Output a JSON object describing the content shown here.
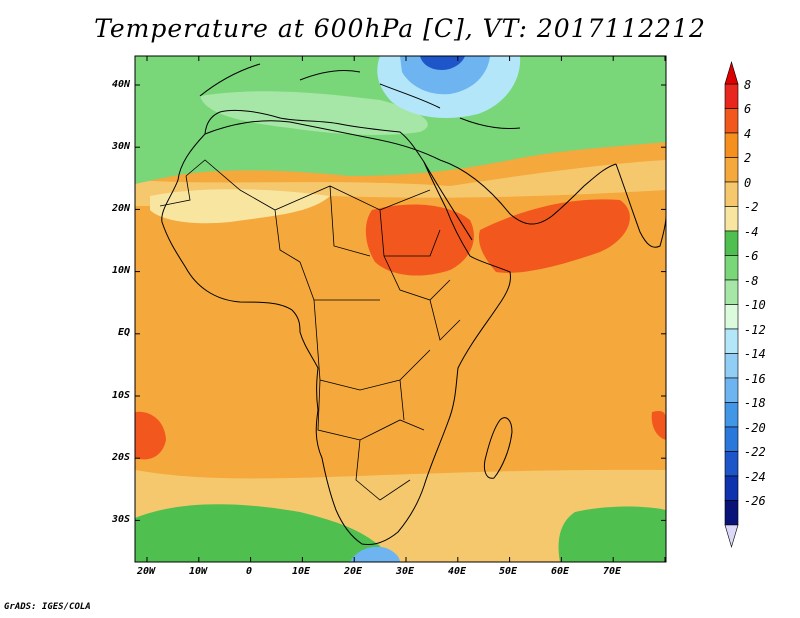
{
  "title": "Temperature at 600hPa [C], VT: 2017112212",
  "credit": "GrADS: IGES/COLA",
  "map": {
    "lat_labels": [
      "40N",
      "30N",
      "20N",
      "10N",
      "EQ",
      "10S",
      "20S",
      "30S"
    ],
    "lon_labels": [
      "20W",
      "10W",
      "0",
      "10E",
      "20E",
      "30E",
      "40E",
      "50E",
      "60E",
      "70E"
    ]
  },
  "colorbar": {
    "levels": [
      "8",
      "6",
      "4",
      "2",
      "0",
      "-2",
      "-4",
      "-6",
      "-8",
      "-10",
      "-12",
      "-14",
      "-16",
      "-18",
      "-20",
      "-22",
      "-24",
      "-26"
    ],
    "colors": [
      "#e8281e",
      "#f2581e",
      "#f5901e",
      "#f5a83c",
      "#f5c86e",
      "#f8e6a0",
      "#4fbf4f",
      "#79d679",
      "#a6e6a6",
      "#dcfadc",
      "#b4e6fa",
      "#91cdf5",
      "#6eb4f0",
      "#4196e6",
      "#2a78dc",
      "#1e55c8",
      "#0f32af",
      "#0a1478"
    ],
    "colors_order": "top-to-bottom",
    "top_arrow_color": "#dc0000",
    "bottom_arrow_color": "#dcd8f8"
  },
  "fill": {
    "dominant_color": "#f5a83c",
    "hot_color": "#f2581e",
    "warm_color": "#f5c86e",
    "pale_color": "#f8e6a0",
    "green_dark": "#4fbf4f",
    "green_mid": "#79d679",
    "green_light": "#a6e6a6",
    "cold_light": "#b4e6fa",
    "cold_mid": "#6eb4f0",
    "cold_dark": "#1e55c8"
  }
}
